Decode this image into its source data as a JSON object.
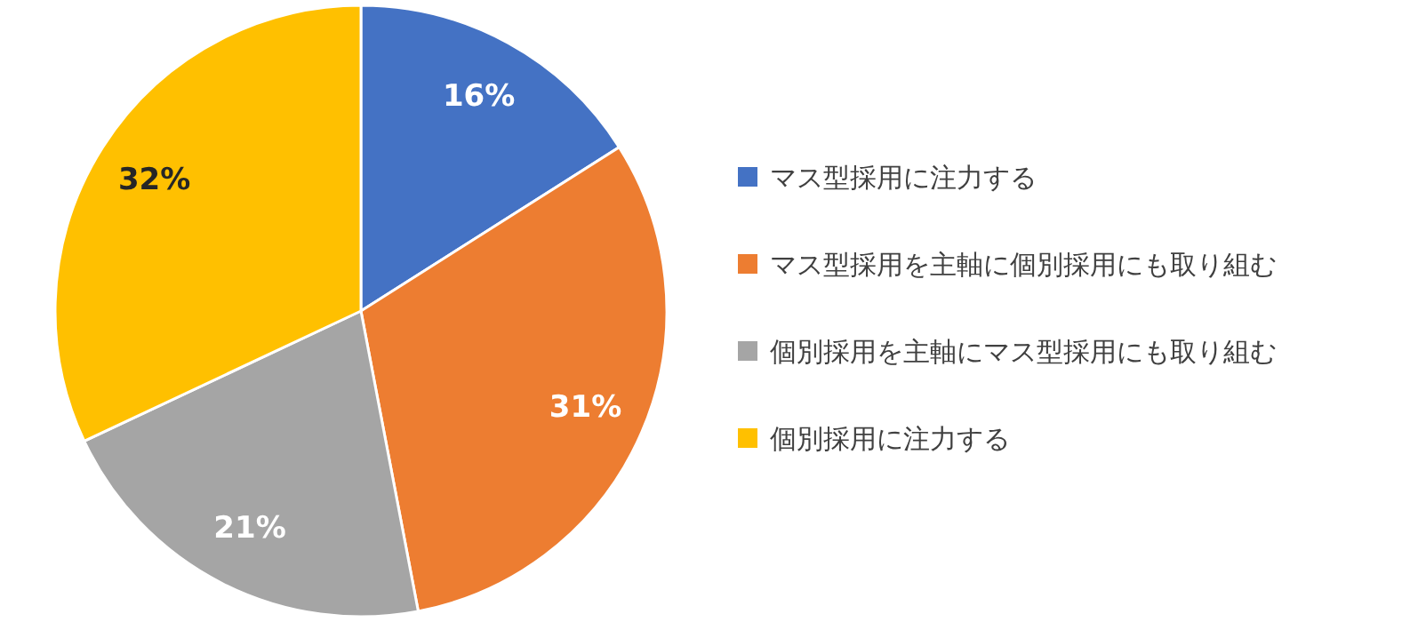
{
  "chart_data": {
    "type": "pie",
    "categories": [
      "マス型採用に注力する",
      "マス型採用を主軸に個別採用にも取り組む",
      "個別採用を主軸にマス型採用にも取り組む",
      "個別採用に注力する"
    ],
    "values": [
      16,
      31,
      21,
      32
    ],
    "colors": [
      "#4472c4",
      "#ed7d31",
      "#a5a5a5",
      "#ffc000"
    ],
    "value_labels": [
      "16%",
      "31%",
      "21%",
      "32%"
    ],
    "legend": "right"
  }
}
